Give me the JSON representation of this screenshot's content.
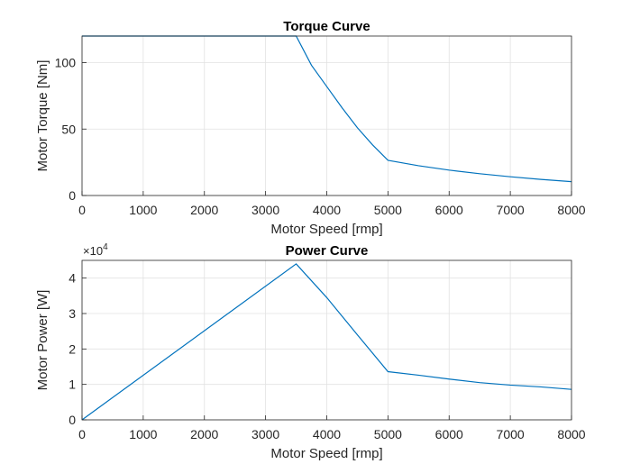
{
  "chart_data": [
    {
      "type": "line",
      "title": "Torque Curve",
      "xlabel": "Motor Speed [rmp]",
      "ylabel": "Motor Torque [Nm]",
      "xlim": [
        0,
        8000
      ],
      "ylim": [
        0,
        120
      ],
      "xticks": [
        "0",
        "1000",
        "2000",
        "3000",
        "4000",
        "5000",
        "6000",
        "7000",
        "8000"
      ],
      "yticks": [
        "0",
        "50",
        "100"
      ],
      "grid": true,
      "line_color": "#0072BD",
      "series": [
        {
          "x": [
            0,
            3500,
            3750,
            4000,
            4250,
            4500,
            4750,
            5000,
            5500,
            6000,
            6500,
            7000,
            7500,
            8000
          ],
          "values": [
            120,
            120,
            98,
            82,
            66,
            51,
            38,
            26.5,
            22.4,
            19.1,
            16.4,
            14.1,
            12.1,
            10.4
          ]
        }
      ]
    },
    {
      "type": "line",
      "title": "Power Curve",
      "xlabel": "Motor Speed [rmp]",
      "ylabel": "Motor Power [W]",
      "xlim": [
        0,
        8000
      ],
      "ylim": [
        0,
        45000
      ],
      "xticks": [
        "0",
        "1000",
        "2000",
        "3000",
        "4000",
        "5000",
        "6000",
        "7000",
        "8000"
      ],
      "yticks": [
        "0",
        "1",
        "2",
        "3",
        "4"
      ],
      "y_exponent_base": "×10",
      "y_exponent": "4",
      "grid": true,
      "line_color": "#0072BD",
      "series": [
        {
          "x": [
            0,
            3500,
            4000,
            4500,
            5000,
            5500,
            6000,
            6500,
            7000,
            7500,
            8000
          ],
          "values": [
            0,
            44000,
            34500,
            24000,
            13600,
            12600,
            11500,
            10500,
            9800,
            9300,
            8600
          ]
        }
      ]
    }
  ]
}
